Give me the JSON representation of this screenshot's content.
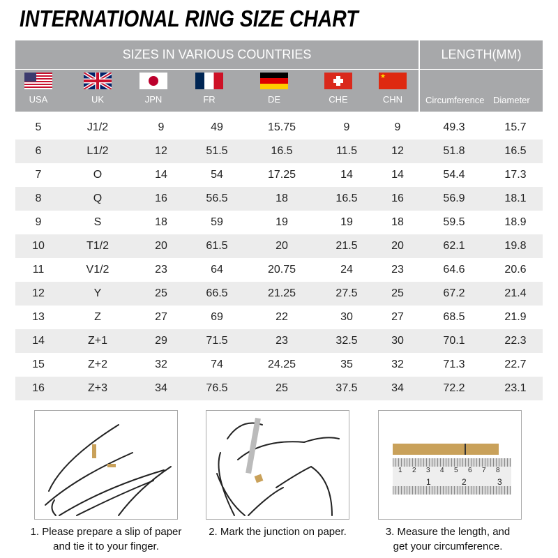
{
  "title": "INTERNATIONAL RING SIZE CHART",
  "header": {
    "sizes_label": "SIZES IN VARIOUS COUNTRIES",
    "length_label": "LENGTH(MM)",
    "countries": [
      {
        "code": "USA",
        "flag": "usa-flag"
      },
      {
        "code": "UK",
        "flag": "uk-flag"
      },
      {
        "code": "JPN",
        "flag": "japan-flag"
      },
      {
        "code": "FR",
        "flag": "france-flag"
      },
      {
        "code": "DE",
        "flag": "germany-flag"
      },
      {
        "code": "CHE",
        "flag": "switzerland-flag"
      },
      {
        "code": "CHN",
        "flag": "china-flag"
      }
    ],
    "circumference": "Circumference",
    "diameter": "Diameter"
  },
  "colors": {
    "header_bg": "#a7a8aa",
    "stripe": "#ececec",
    "paper": "#c9a15a"
  },
  "rows": [
    [
      "5",
      "J1/2",
      "9",
      "49",
      "15.75",
      "9",
      "9",
      "49.3",
      "15.7"
    ],
    [
      "6",
      "L1/2",
      "12",
      "51.5",
      "16.5",
      "11.5",
      "12",
      "51.8",
      "16.5"
    ],
    [
      "7",
      "O",
      "14",
      "54",
      "17.25",
      "14",
      "14",
      "54.4",
      "17.3"
    ],
    [
      "8",
      "Q",
      "16",
      "56.5",
      "18",
      "16.5",
      "16",
      "56.9",
      "18.1"
    ],
    [
      "9",
      "S",
      "18",
      "59",
      "19",
      "19",
      "18",
      "59.5",
      "18.9"
    ],
    [
      "10",
      "T1/2",
      "20",
      "61.5",
      "20",
      "21.5",
      "20",
      "62.1",
      "19.8"
    ],
    [
      "11",
      "V1/2",
      "23",
      "64",
      "20.75",
      "24",
      "23",
      "64.6",
      "20.6"
    ],
    [
      "12",
      "Y",
      "25",
      "66.5",
      "21.25",
      "27.5",
      "25",
      "67.2",
      "21.4"
    ],
    [
      "13",
      "Z",
      "27",
      "69",
      "22",
      "30",
      "27",
      "68.5",
      "21.9"
    ],
    [
      "14",
      "Z+1",
      "29",
      "71.5",
      "23",
      "32.5",
      "30",
      "70.1",
      "22.3"
    ],
    [
      "15",
      "Z+2",
      "32",
      "74",
      "24.25",
      "35",
      "32",
      "71.3",
      "22.7"
    ],
    [
      "16",
      "Z+3",
      "34",
      "76.5",
      "25",
      "37.5",
      "34",
      "72.2",
      "23.1"
    ]
  ],
  "steps": [
    {
      "line1": "1. Please prepare a slip of paper",
      "line2": "and tie it to your finger."
    },
    {
      "line1": "2. Mark the junction on paper.",
      "line2": ""
    },
    {
      "line1": "3. Measure the length, and",
      "line2": "get your circumference."
    }
  ],
  "ruler": {
    "cm_ticks": [
      "1",
      "2",
      "3",
      "4",
      "5",
      "6",
      "7",
      "8"
    ],
    "inch_ticks": [
      "1",
      "2",
      "3"
    ]
  }
}
